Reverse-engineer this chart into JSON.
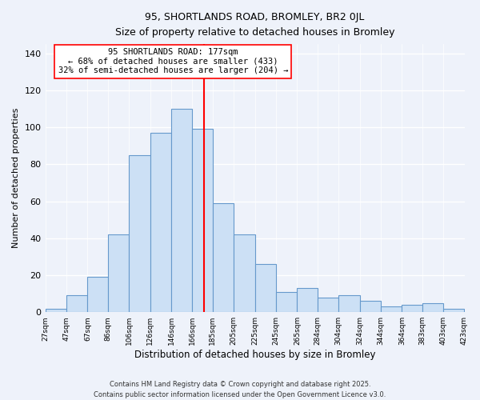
{
  "title": "95, SHORTLANDS ROAD, BROMLEY, BR2 0JL",
  "subtitle": "Size of property relative to detached houses in Bromley",
  "xlabel": "Distribution of detached houses by size in Bromley",
  "ylabel": "Number of detached properties",
  "bin_edges": [
    27,
    47,
    67,
    86,
    106,
    126,
    146,
    166,
    185,
    205,
    225,
    245,
    265,
    284,
    304,
    324,
    344,
    364,
    383,
    403,
    423
  ],
  "bin_labels": [
    "27sqm",
    "47sqm",
    "67sqm",
    "86sqm",
    "106sqm",
    "126sqm",
    "146sqm",
    "166sqm",
    "185sqm",
    "205sqm",
    "225sqm",
    "245sqm",
    "265sqm",
    "284sqm",
    "304sqm",
    "324sqm",
    "344sqm",
    "364sqm",
    "383sqm",
    "403sqm",
    "423sqm"
  ],
  "counts": [
    2,
    9,
    19,
    42,
    85,
    97,
    110,
    99,
    59,
    42,
    26,
    11,
    13,
    8,
    9,
    6,
    3,
    4,
    5,
    2
  ],
  "bar_color": "#cce0f5",
  "bar_edge_color": "#6699cc",
  "vline_x": 177,
  "vline_color": "red",
  "annotation_title": "95 SHORTLANDS ROAD: 177sqm",
  "annotation_line1": "← 68% of detached houses are smaller (433)",
  "annotation_line2": "32% of semi-detached houses are larger (204) →",
  "annotation_box_color": "white",
  "annotation_box_edge": "red",
  "ylim": [
    0,
    145
  ],
  "yticks": [
    0,
    20,
    40,
    60,
    80,
    100,
    120,
    140
  ],
  "footer1": "Contains HM Land Registry data © Crown copyright and database right 2025.",
  "footer2": "Contains public sector information licensed under the Open Government Licence v3.0.",
  "background_color": "#eef2fa"
}
